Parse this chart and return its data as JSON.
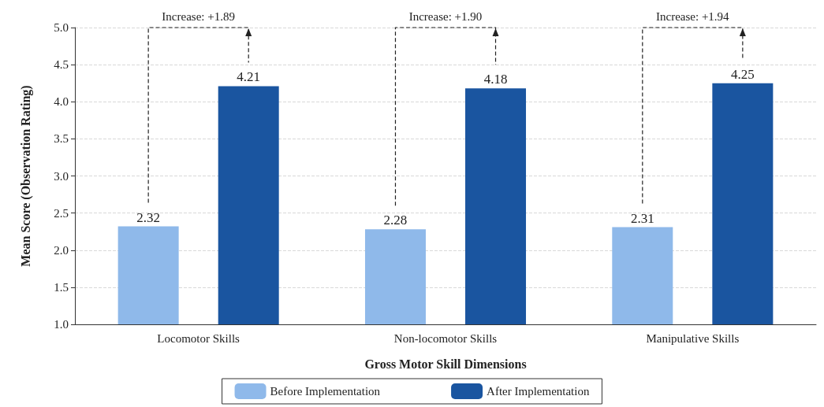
{
  "chart_data": {
    "type": "bar",
    "xlabel": "Gross Motor Skill Dimensions",
    "ylabel": "Mean Score (Observation Rating)",
    "categories": [
      "Locomotor Skills",
      "Non-locomotor Skills",
      "Manipulative Skills"
    ],
    "series": [
      {
        "name": "Before Implementation",
        "color": "#8fb9ea",
        "values": [
          2.32,
          2.28,
          2.31
        ]
      },
      {
        "name": "After Implementation",
        "color": "#1a55a0",
        "values": [
          4.21,
          4.18,
          4.25
        ]
      }
    ],
    "ylim": [
      1,
      5
    ],
    "yticks": [
      {
        "value": 1,
        "label": "1.0"
      },
      {
        "value": 1.5,
        "label": "1.5"
      },
      {
        "value": 2,
        "label": "2.0"
      },
      {
        "value": 2.5,
        "label": "2.5"
      },
      {
        "value": 3,
        "label": "3.0"
      },
      {
        "value": 3.5,
        "label": "3.5"
      },
      {
        "value": 4,
        "label": "4.0"
      },
      {
        "value": 4.5,
        "label": "4.5"
      },
      {
        "value": 5,
        "label": "5.0"
      }
    ],
    "grid": "y",
    "legend": "bottom",
    "data_labels": true,
    "annotations": [
      "Increase: +1.89",
      "Increase: +1.90",
      "Increase: +1.94"
    ]
  }
}
